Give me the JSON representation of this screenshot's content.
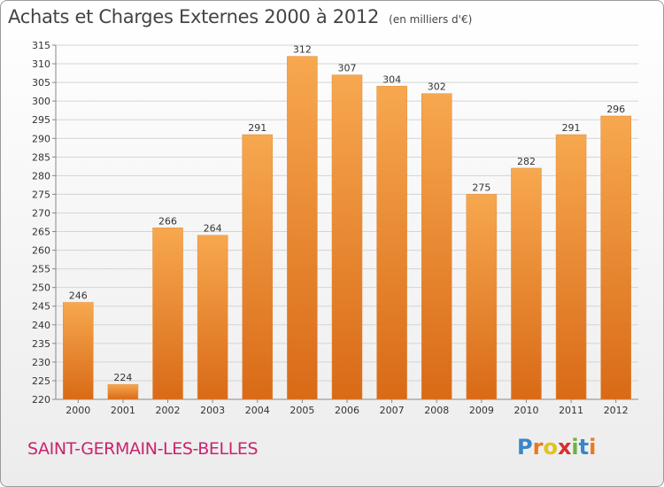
{
  "header": {
    "title": "Achats et Charges Externes 2000 à 2012",
    "unit": "(en milliers d'€)"
  },
  "footer": {
    "commune": "SAINT-GERMAIN-LES-BELLES",
    "logo_letters": [
      "P",
      "r",
      "o",
      "x",
      "i",
      "t",
      "i"
    ],
    "logo_colors": [
      "#3a86c8",
      "#e87a1e",
      "#e2c31c",
      "#d62f2f",
      "#6cb33f",
      "#3a86c8",
      "#e87a1e"
    ]
  },
  "colors": {
    "bar_light": "#f7a84f",
    "bar_dark": "#d96a17",
    "grid": "#d4d4d4",
    "commune": "#c8246e"
  },
  "chart_data": {
    "type": "bar",
    "title": "Achats et Charges Externes 2000 à 2012",
    "subtitle": "(en milliers d'€)",
    "categories": [
      "2000",
      "2001",
      "2002",
      "2003",
      "2004",
      "2005",
      "2006",
      "2007",
      "2008",
      "2009",
      "2010",
      "2011",
      "2012"
    ],
    "values": [
      246,
      224,
      266,
      264,
      291,
      312,
      307,
      304,
      302,
      275,
      282,
      291,
      296
    ],
    "ylim": [
      220,
      315
    ],
    "ytick_step": 5,
    "grid": true,
    "value_labels": true
  }
}
